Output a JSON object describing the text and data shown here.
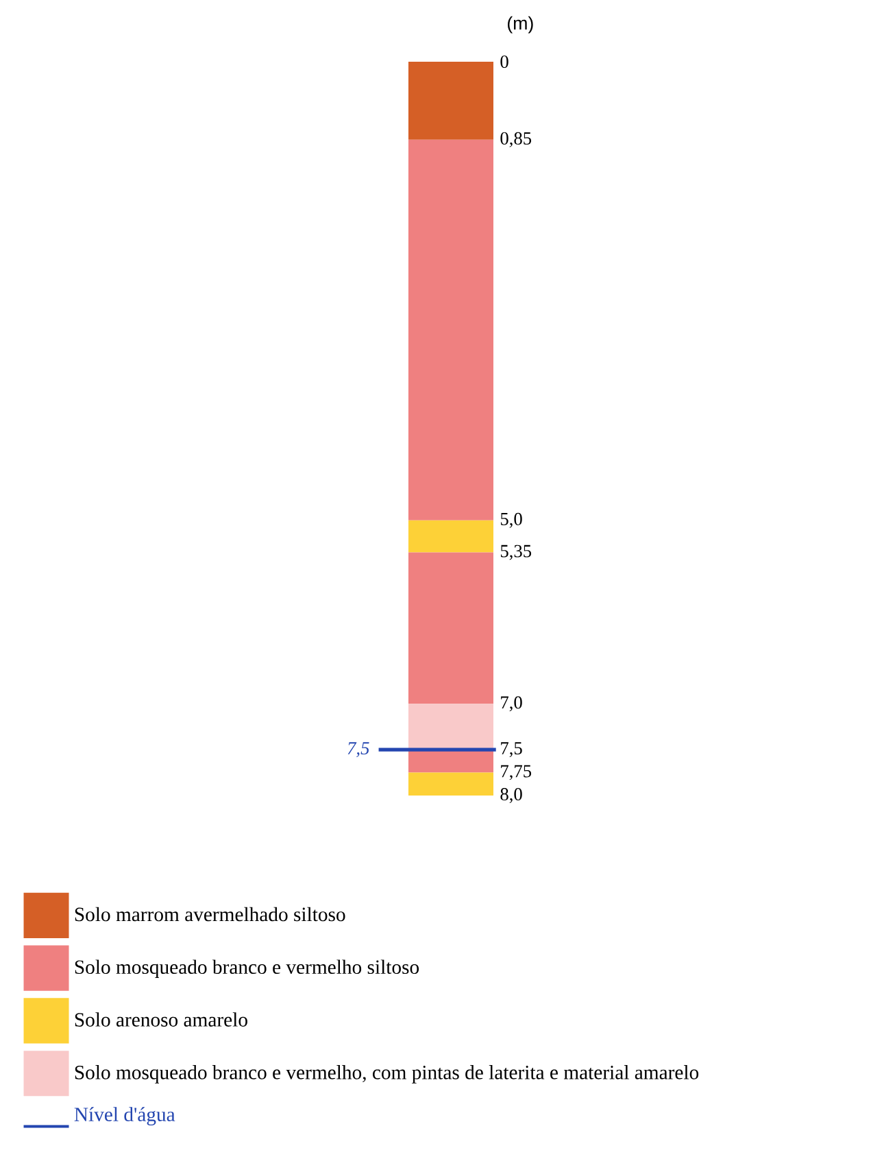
{
  "chart_data": {
    "type": "bar",
    "stacked": true,
    "categories": [
      null
    ],
    "ylabel": "(m)",
    "series": [
      {
        "name": "Solo marrom avermelhado siltoso",
        "color": "#d55f26",
        "values": [
          0.85
        ]
      },
      {
        "name": "Solo mosqueado branco e vermelho siltoso",
        "color": "#ef8080",
        "values": [
          4.15
        ]
      },
      {
        "name": "Solo arenoso amarelo",
        "color": "#fdd137",
        "values": [
          0.35
        ]
      },
      {
        "color": "#ef8080",
        "values": [
          1.65
        ]
      },
      {
        "name": "Solo mosqueado branco e vermelho, com pintas de laterita e material amarelo",
        "color": "#f9c9c9",
        "values": [
          0.5
        ]
      },
      {
        "color": "#ef8080",
        "values": [
          0.25
        ]
      },
      {
        "color": "#fdd137",
        "values": [
          0.25
        ]
      }
    ],
    "ylim": [
      8,
      0
    ],
    "yticks": [
      0,
      {
        "value": 0.85,
        "label": "0,85"
      },
      {
        "value": 5.0,
        "label": "5,0"
      },
      {
        "value": 5.35,
        "label": "5,35"
      },
      {
        "value": 7.0,
        "label": "7,0"
      },
      {
        "value": 7.5,
        "label": "7,5"
      },
      {
        "value": 7.75,
        "label": "7,75"
      },
      {
        "value": 8.0,
        "label": "8,0"
      }
    ],
    "ref_lines": [
      {
        "axis": "y",
        "value": 7.5,
        "label": "Nível d'água",
        "color": "#2446b0"
      }
    ],
    "annotations": [
      "7,5"
    ],
    "legend": "bottom",
    "tick_labels": "y"
  }
}
